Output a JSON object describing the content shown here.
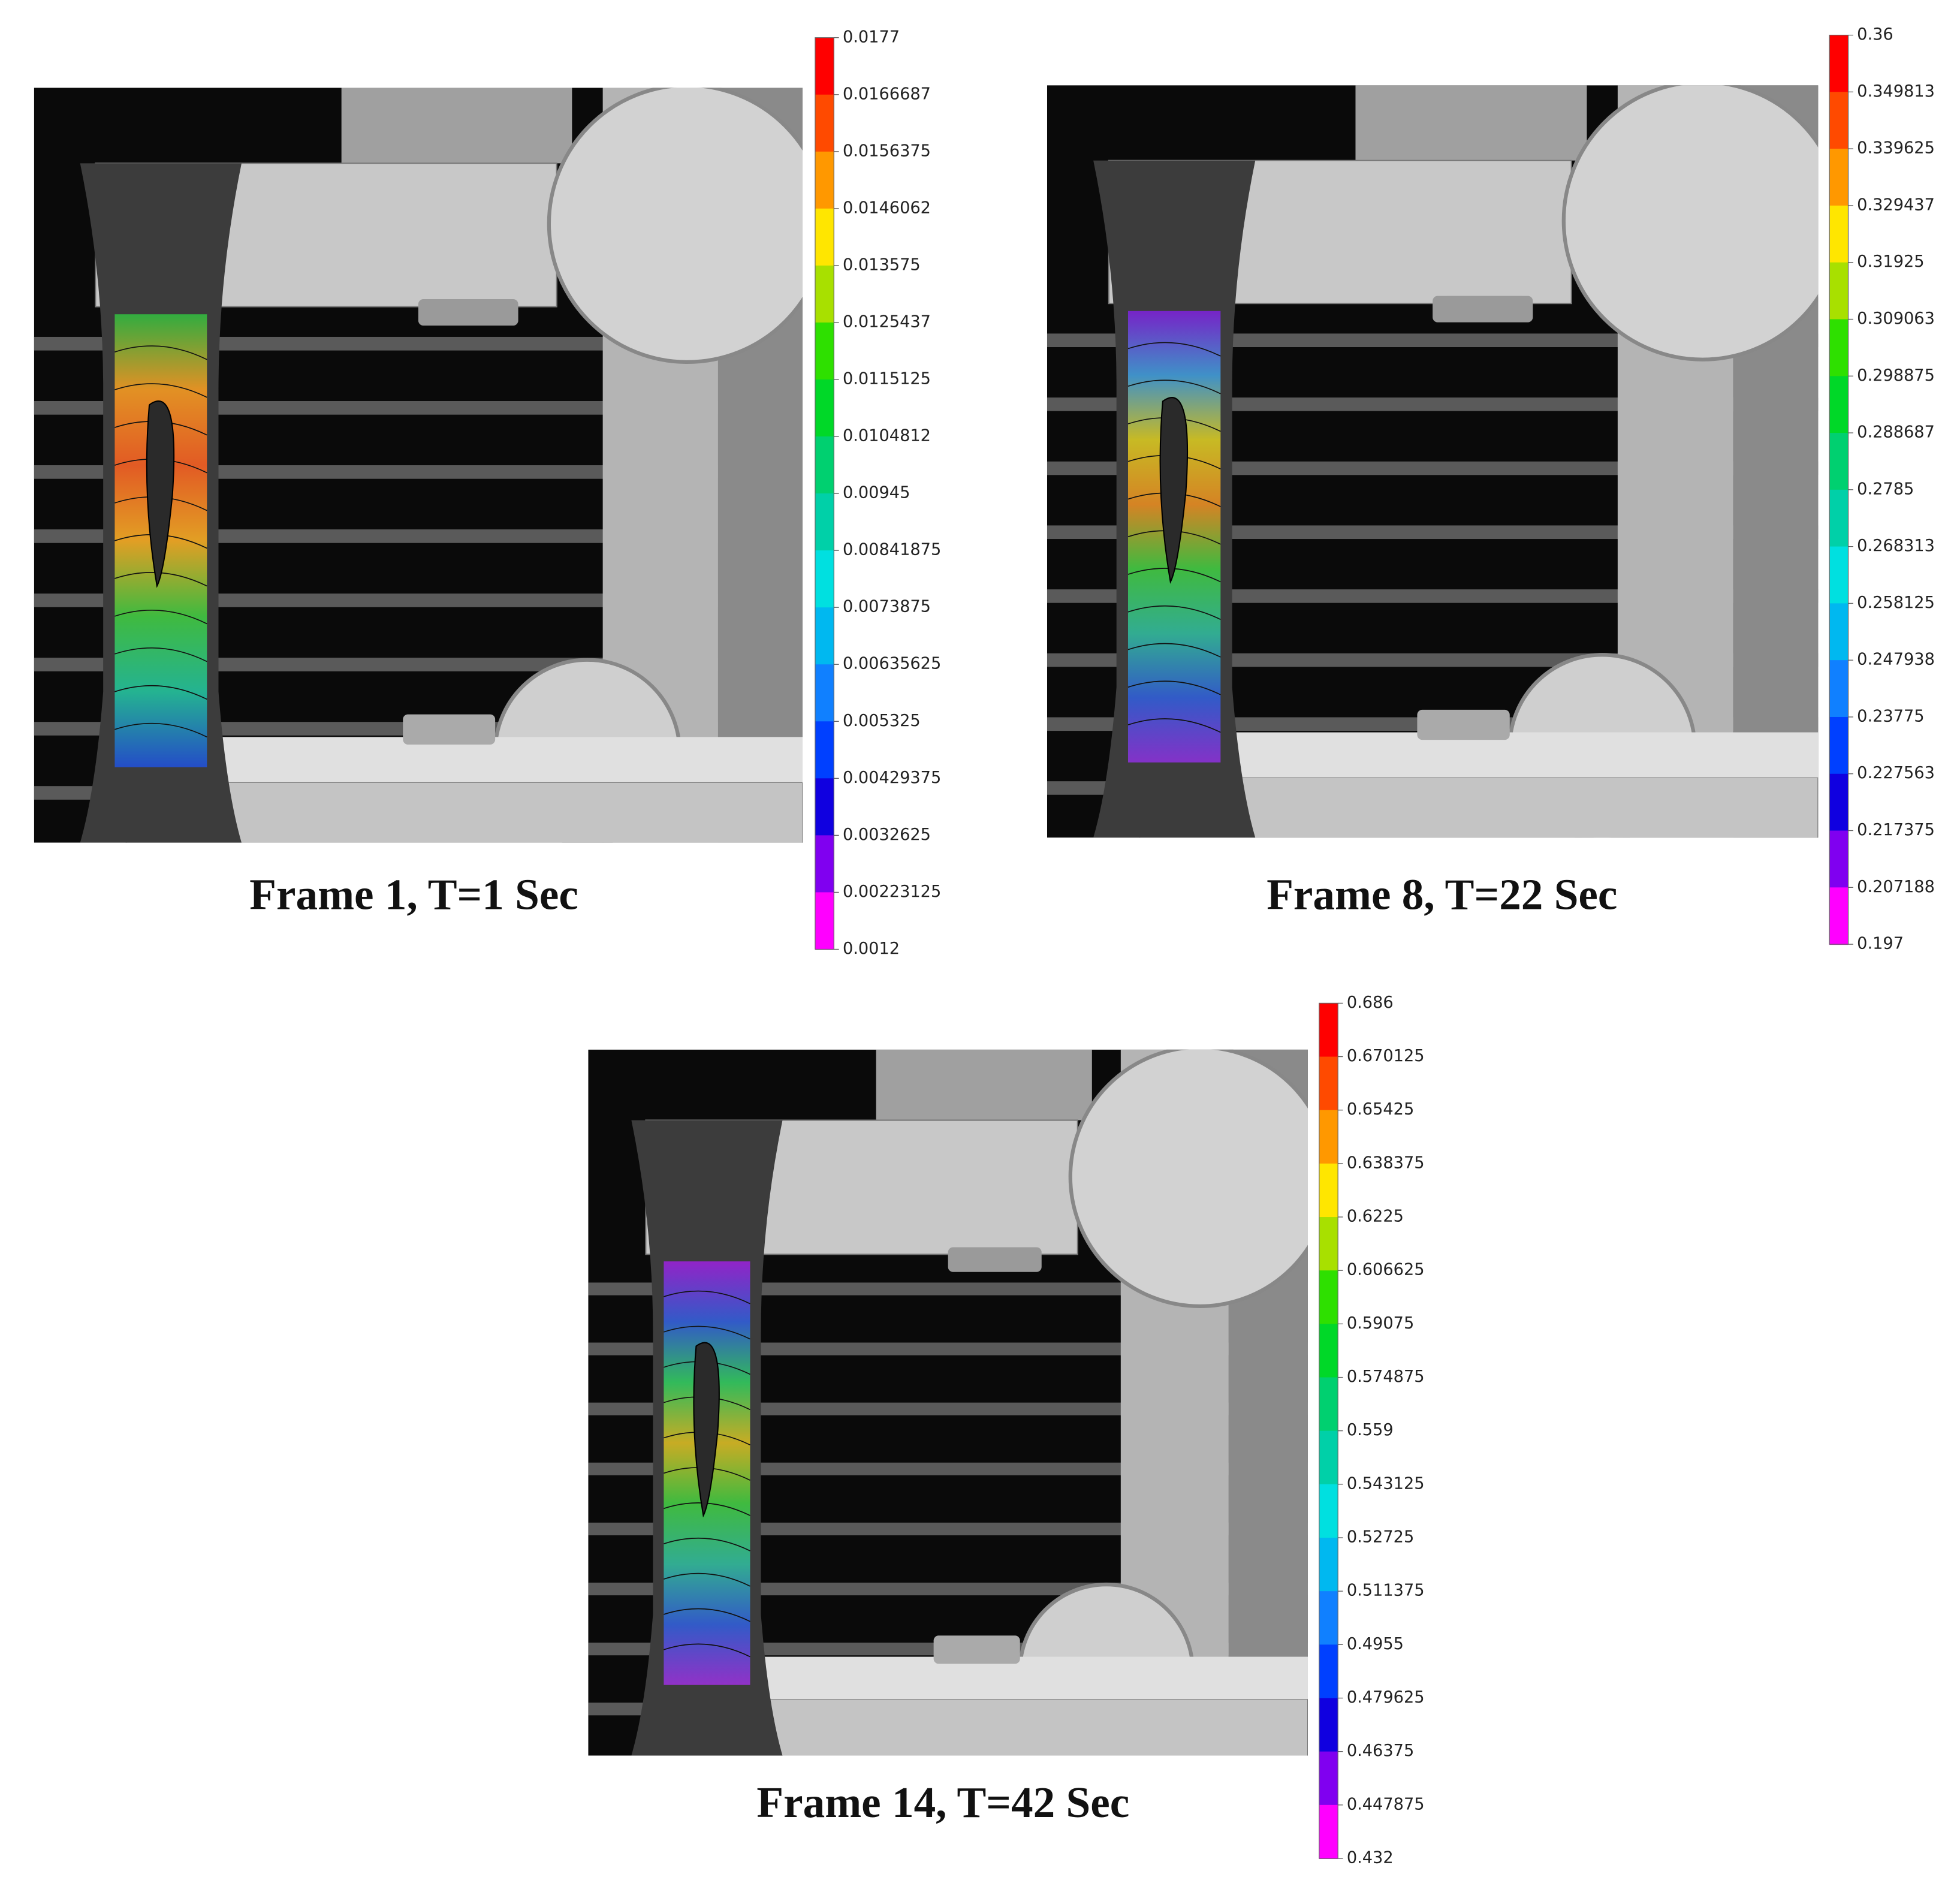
{
  "panels": [
    {
      "caption": "Frame 1, T=1 Sec",
      "colorbar": [
        "0.0177",
        "0.0166687",
        "0.0156375",
        "0.0146062",
        "0.013575",
        "0.0125437",
        "0.0115125",
        "0.0104812",
        "0.00945",
        "0.00841875",
        "0.0073875",
        "0.00635625",
        "0.005325",
        "0.00429375",
        "0.0032625",
        "0.00223125",
        "0.0012"
      ]
    },
    {
      "caption": "Frame 8, T=22 Sec",
      "colorbar": [
        "0.36",
        "0.349813",
        "0.339625",
        "0.329437",
        "0.31925",
        "0.309063",
        "0.298875",
        "0.288687",
        "0.2785",
        "0.268313",
        "0.258125",
        "0.247938",
        "0.23775",
        "0.227563",
        "0.217375",
        "0.207188",
        "0.197"
      ]
    },
    {
      "caption": "Frame 14, T=42 Sec",
      "colorbar": [
        "0.686",
        "0.670125",
        "0.65425",
        "0.638375",
        "0.6225",
        "0.606625",
        "0.59075",
        "0.574875",
        "0.559",
        "0.543125",
        "0.52725",
        "0.511375",
        "0.4955",
        "0.479625",
        "0.46375",
        "0.447875",
        "0.432"
      ]
    }
  ]
}
